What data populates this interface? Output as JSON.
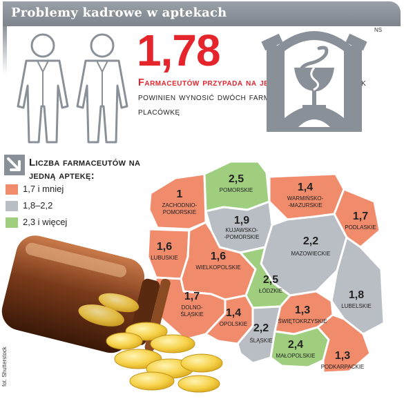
{
  "header": {
    "title": "Problemy kadrowe w aptekach"
  },
  "headline": {
    "number": "1,78",
    "text_red": "Farmaceutów przypada na jedną aptekę.",
    "text_dark": "Wskaźnik powinien wynosić dwóch farmaceutów na jedną placówkę"
  },
  "source_tag": "NS",
  "credit": "fot. Shutterstock",
  "legend": {
    "title": "Liczba farmaceutów na jedną aptekę:",
    "items": [
      {
        "label": "1,7 i mniej",
        "color": "#f08b6c"
      },
      {
        "label": "1,8–2,2",
        "color": "#b9bec4"
      },
      {
        "label": "2,3 i więcej",
        "color": "#9fce7e"
      }
    ]
  },
  "colors": {
    "accent": "#e4262c",
    "header_bg": "#8a9098"
  },
  "icons": [
    "pharmacist-figure-icon",
    "pharmacy-caduceus-icon",
    "corner-arrow-icon",
    "pill-bottle-image"
  ],
  "regions": [
    {
      "name": "zachodnio-pomorskie",
      "value": "1",
      "label": "ZACHODNIO-\nPOMORSKIE",
      "category": "low"
    },
    {
      "name": "pomorskie",
      "value": "2,5",
      "label": "POMORSKIE",
      "category": "high"
    },
    {
      "name": "warminsko-mazurskie",
      "value": "1,4",
      "label": "WARMIŃSKO-\n-MAZURSKIE",
      "category": "low"
    },
    {
      "name": "podlaskie",
      "value": "1,7",
      "label": "PODLASKIE",
      "category": "low"
    },
    {
      "name": "kujawsko-pomorskie",
      "value": "1,9",
      "label": "KUJAWSKO-\n-POMORSKIE",
      "category": "mid"
    },
    {
      "name": "lubuskie",
      "value": "1,6",
      "label": "LUBUSKIE",
      "category": "low"
    },
    {
      "name": "wielkopolskie",
      "value": "1,6",
      "label": "WIELKOPOLSKIE",
      "category": "low"
    },
    {
      "name": "mazowieckie",
      "value": "2,2",
      "label": "MAZOWIECKIE",
      "category": "mid"
    },
    {
      "name": "lodzkie",
      "value": "2,5",
      "label": "ŁÓDZKIE",
      "category": "high"
    },
    {
      "name": "lubelskie",
      "value": "1,8",
      "label": "LUBELSKIE",
      "category": "mid"
    },
    {
      "name": "dolnoslaskie",
      "value": "1,7",
      "label": "DOLNO-\nŚLĄSKIE",
      "category": "low"
    },
    {
      "name": "opolskie",
      "value": "1,4",
      "label": "OPOLSKIE",
      "category": "low"
    },
    {
      "name": "slaskie",
      "value": "2,2",
      "label": "ŚLĄSKIE",
      "category": "mid"
    },
    {
      "name": "swietokrzyskie",
      "value": "1,3",
      "label": "ŚWIĘTOKRZYSKIE",
      "category": "low"
    },
    {
      "name": "malopolskie",
      "value": "2,4",
      "label": "MAŁOPOLSKIE",
      "category": "high"
    },
    {
      "name": "podkarpackie",
      "value": "1,3",
      "label": "PODKARPACKIE",
      "category": "low"
    }
  ]
}
